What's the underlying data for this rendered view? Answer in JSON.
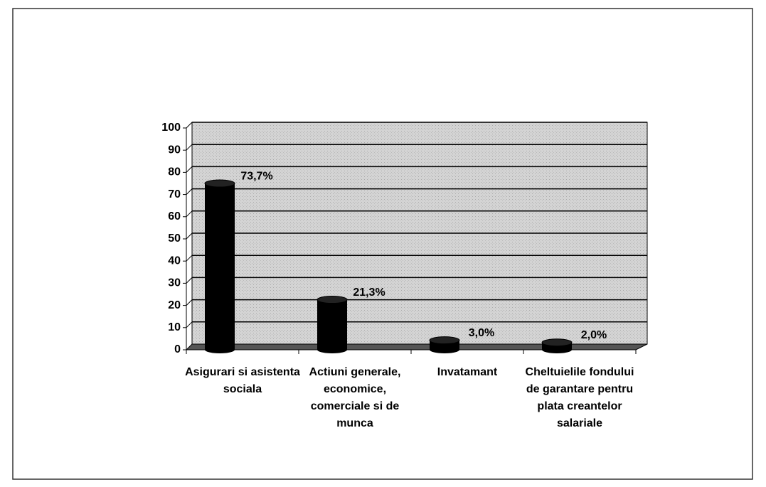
{
  "chart_data": {
    "type": "bar",
    "categories": [
      "Asigurari si asistenta sociala",
      "Actiuni generale, economice, comerciale si de munca",
      "Invatamant",
      "Cheltuielile fondului de garantare pentru plata creantelor salariale"
    ],
    "values": [
      73.7,
      21.3,
      3.0,
      2.0
    ],
    "value_labels": [
      "73,7%",
      "21,3%",
      "3,0%",
      "2,0%"
    ],
    "color": "#000000",
    "ylim": [
      0,
      100
    ],
    "yticks": [
      0,
      10,
      20,
      30,
      40,
      50,
      60,
      70,
      80,
      90,
      100
    ],
    "grid": true
  }
}
